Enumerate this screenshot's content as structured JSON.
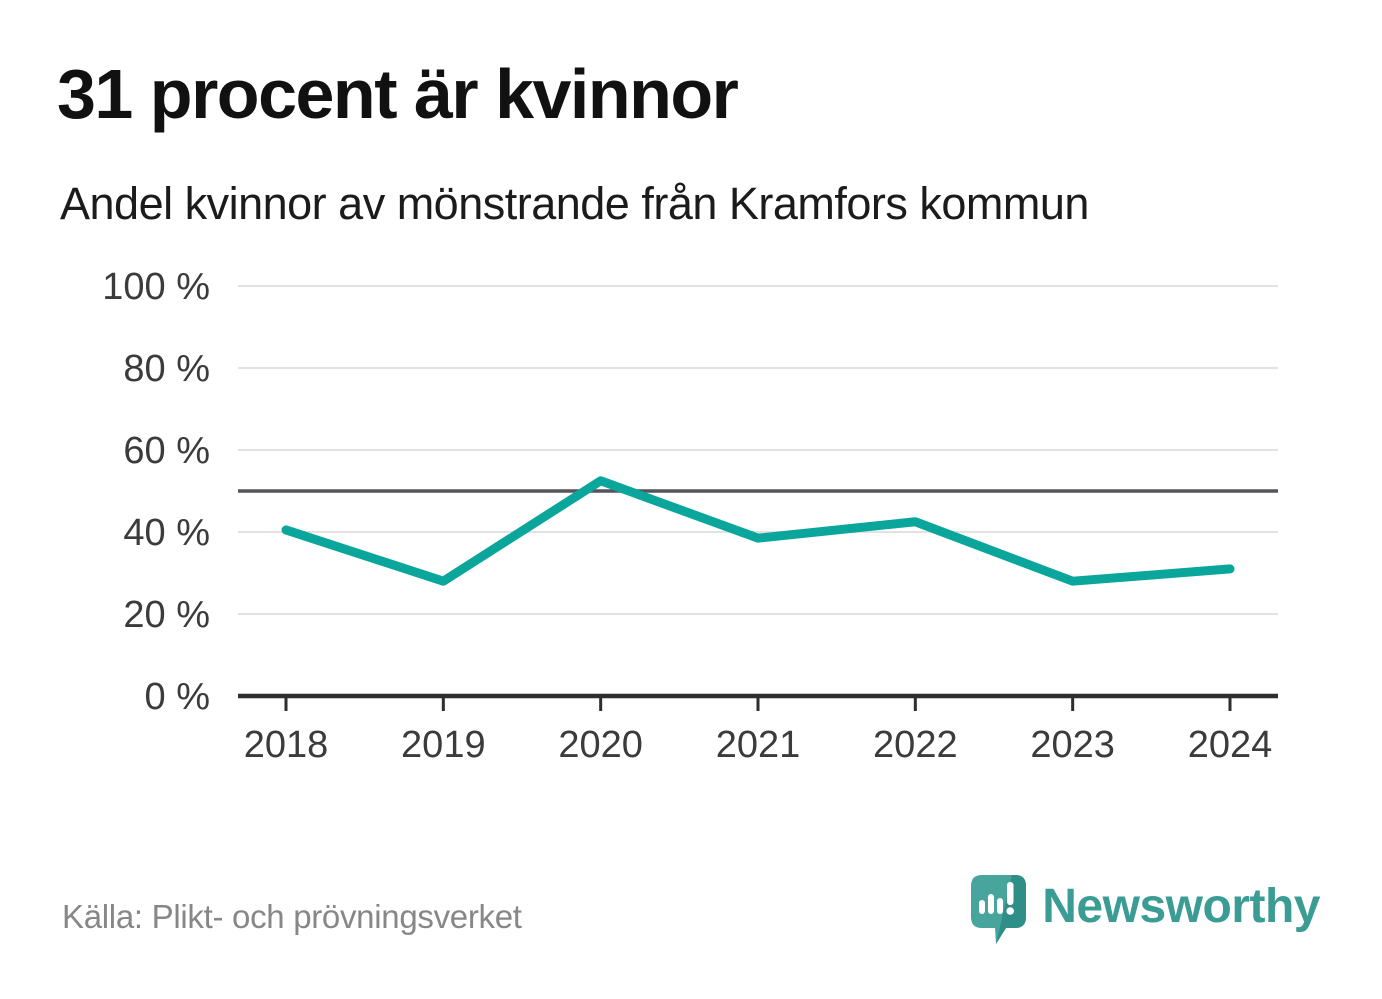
{
  "header": {
    "title": "31 procent är kvinnor",
    "subtitle": "Andel kvinnor av mönstrande från Kramfors kommun"
  },
  "chart_data": {
    "type": "line",
    "title": "31 procent är kvinnor",
    "subtitle": "Andel kvinnor av mönstrande från Kramfors kommun",
    "categories": [
      "2018",
      "2019",
      "2020",
      "2021",
      "2022",
      "2023",
      "2024"
    ],
    "series": [
      {
        "name": "Andel kvinnor av mönstrande",
        "values": [
          40.5,
          28,
          52.5,
          38.5,
          42.5,
          28,
          31
        ]
      }
    ],
    "ylim": [
      0,
      100
    ],
    "ytick_step": 20,
    "ytick_suffix": " %",
    "ytick_labels": [
      "0 %",
      "20 %",
      "40 %",
      "60 %",
      "80 %",
      "100 %"
    ],
    "reference_line": 50,
    "grid": true,
    "legend": false,
    "xlabel": "",
    "ylabel": "",
    "colors": {
      "line": "#0ba69b",
      "reference": "#54545a",
      "grid": "#e2e2e2",
      "axis": "#2e2e2e",
      "tick_label": "#3b3b3b"
    }
  },
  "footer": {
    "source": "Källa: Plikt- och prövningsverket",
    "brand": "Newsworthy"
  },
  "colors": {
    "accent_teal": "#0ba69b",
    "brand_teal": "#3b9c95",
    "brand_teal_dark": "#2f8e88",
    "title_text": "#111111",
    "muted_text": "#878787"
  }
}
